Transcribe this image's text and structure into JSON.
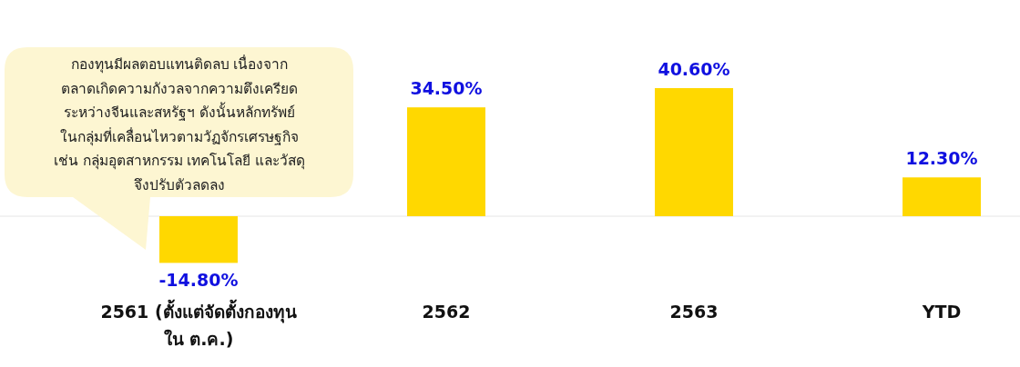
{
  "chart_data": {
    "type": "bar",
    "categories": [
      "2561 (ตั้งแต่จัดตั้งกองทุน ใน ต.ค.)",
      "2562",
      "2563",
      "YTD"
    ],
    "values": [
      -14.8,
      34.5,
      40.6,
      12.3
    ],
    "value_labels": [
      "-14.80%",
      "34.50%",
      "40.60%",
      "12.30%"
    ],
    "color": "#ffd800",
    "annotations": [
      "กองทุนมีผลตอบแทนติดลบ เนื่องจาก\nตลาดเกิดความกังวลจากความตึงเครียด\nระหว่างจีนและสหรัฐฯ ดังนั้นหลักทรัพย์\nในกลุ่มที่เคลื่อนไหวตามวัฏจักรเศรษฐกิจ\nเช่น กลุ่มอุตสาหกรรม เทคโนโลยี และวัสดุ\nจึงปรับตัวลดลง"
    ],
    "data_labels": false
  }
}
